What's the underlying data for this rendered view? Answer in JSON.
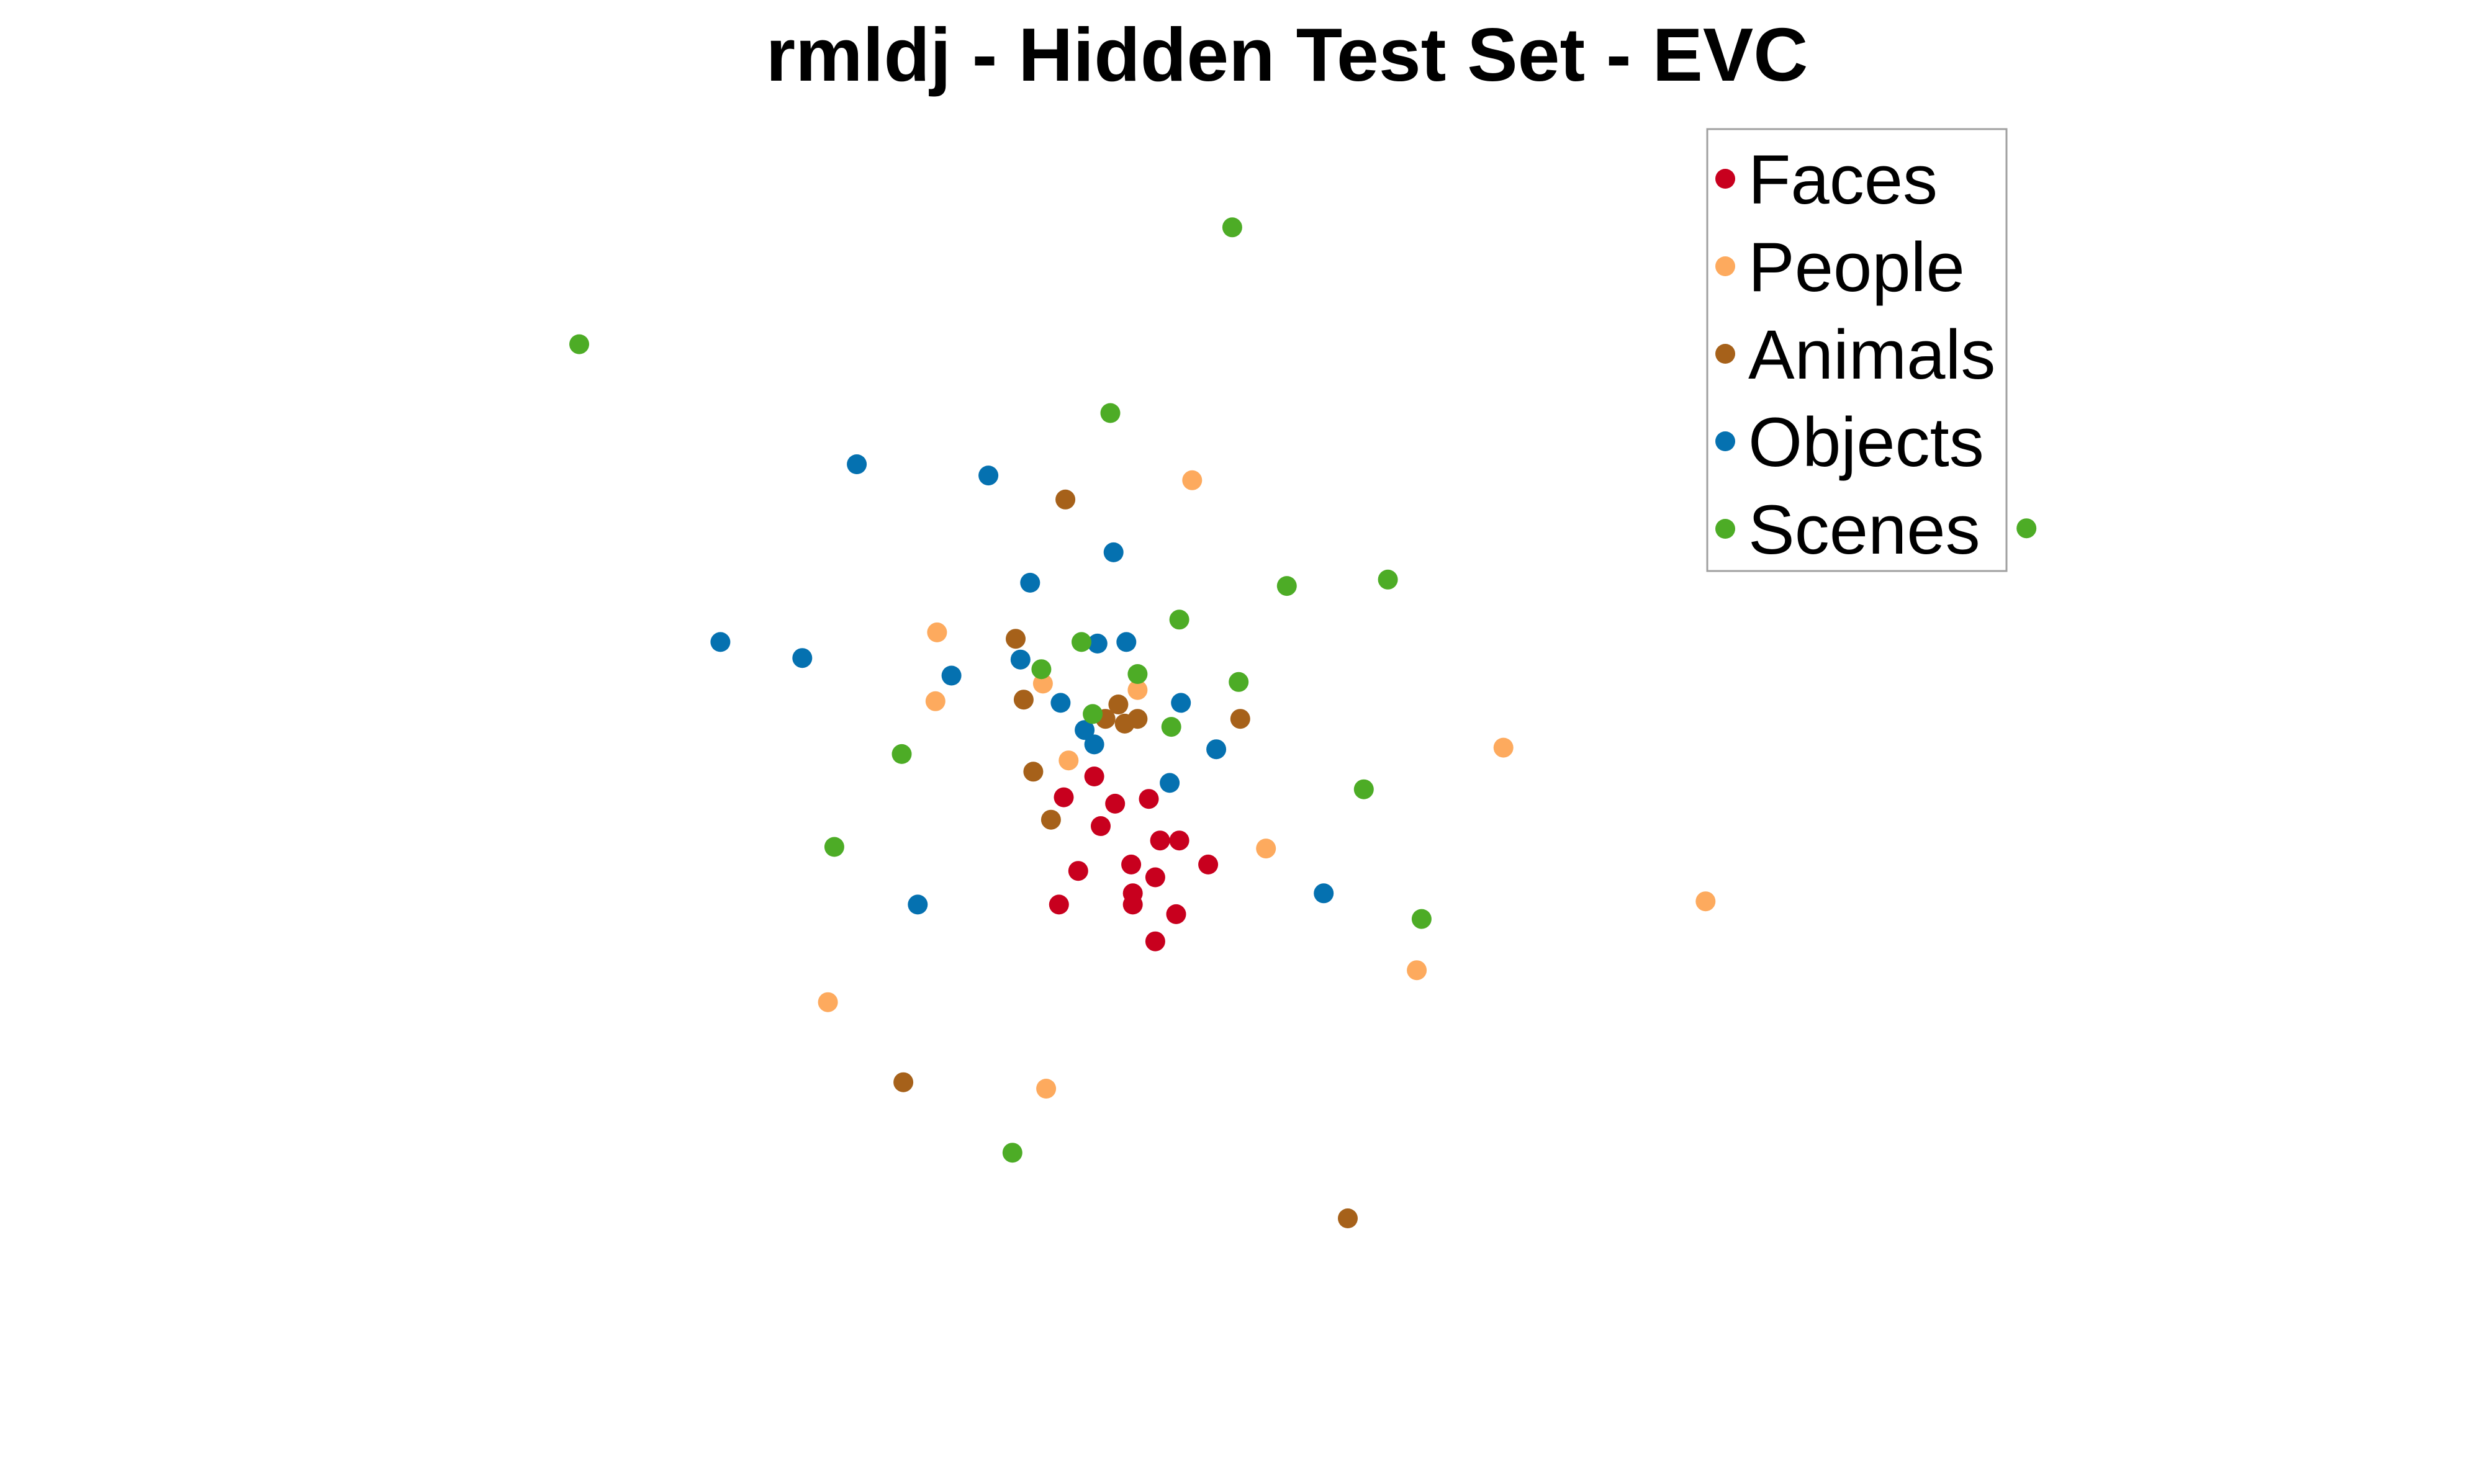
{
  "chart_data": {
    "type": "scatter",
    "title": "rmldj - Hidden Test Set - EVC",
    "xlabel": "",
    "ylabel": "",
    "axes_visible": false,
    "grid": false,
    "legend_position": "top-right",
    "xlim": [
      0,
      1550
    ],
    "ylim": [
      0,
      925
    ],
    "series": [
      {
        "name": "Faces",
        "color": "#c8001e",
        "points": [
          [
            682,
            485
          ],
          [
            663,
            498
          ],
          [
            716,
            499
          ],
          [
            695,
            502
          ],
          [
            686,
            516
          ],
          [
            723,
            525
          ],
          [
            735,
            525
          ],
          [
            705,
            540
          ],
          [
            753,
            540
          ],
          [
            672,
            544
          ],
          [
            720,
            548
          ],
          [
            706,
            558
          ],
          [
            660,
            565
          ],
          [
            706,
            565
          ],
          [
            733,
            571
          ],
          [
            720,
            588
          ]
        ]
      },
      {
        "name": "People",
        "color": "#fdaa5e",
        "points": [
          [
            743,
            300
          ],
          [
            584,
            395
          ],
          [
            650,
            427
          ],
          [
            709,
            431
          ],
          [
            583,
            438
          ],
          [
            666,
            475
          ],
          [
            937,
            467
          ],
          [
            789,
            530
          ],
          [
            1063,
            563
          ],
          [
            883,
            606
          ],
          [
            516,
            626
          ],
          [
            652,
            680
          ]
        ]
      },
      {
        "name": "Animals",
        "color": "#a6611a",
        "points": [
          [
            664,
            312
          ],
          [
            633,
            399
          ],
          [
            638,
            437
          ],
          [
            697,
            440
          ],
          [
            689,
            449
          ],
          [
            701,
            452
          ],
          [
            709,
            449
          ],
          [
            773,
            449
          ],
          [
            644,
            482
          ],
          [
            655,
            512
          ],
          [
            563,
            676
          ],
          [
            840,
            761
          ]
        ]
      },
      {
        "name": "Objects",
        "color": "#0571b0",
        "points": [
          [
            534,
            290
          ],
          [
            616,
            297
          ],
          [
            694,
            345
          ],
          [
            642,
            364
          ],
          [
            449,
            401
          ],
          [
            684,
            402
          ],
          [
            702,
            401
          ],
          [
            500,
            411
          ],
          [
            636,
            412
          ],
          [
            593,
            422
          ],
          [
            661,
            439
          ],
          [
            736,
            439
          ],
          [
            676,
            456
          ],
          [
            682,
            465
          ],
          [
            758,
            468
          ],
          [
            729,
            489
          ],
          [
            825,
            558
          ],
          [
            572,
            565
          ]
        ]
      },
      {
        "name": "Scenes",
        "color": "#4dac26",
        "points": [
          [
            768,
            142
          ],
          [
            361,
            215
          ],
          [
            692,
            258
          ],
          [
            1263,
            330
          ],
          [
            865,
            362
          ],
          [
            802,
            366
          ],
          [
            735,
            387
          ],
          [
            674,
            401
          ],
          [
            649,
            418
          ],
          [
            709,
            421
          ],
          [
            772,
            426
          ],
          [
            681,
            446
          ],
          [
            730,
            454
          ],
          [
            562,
            471
          ],
          [
            850,
            493
          ],
          [
            520,
            529
          ],
          [
            886,
            574
          ],
          [
            631,
            720
          ]
        ]
      }
    ]
  }
}
